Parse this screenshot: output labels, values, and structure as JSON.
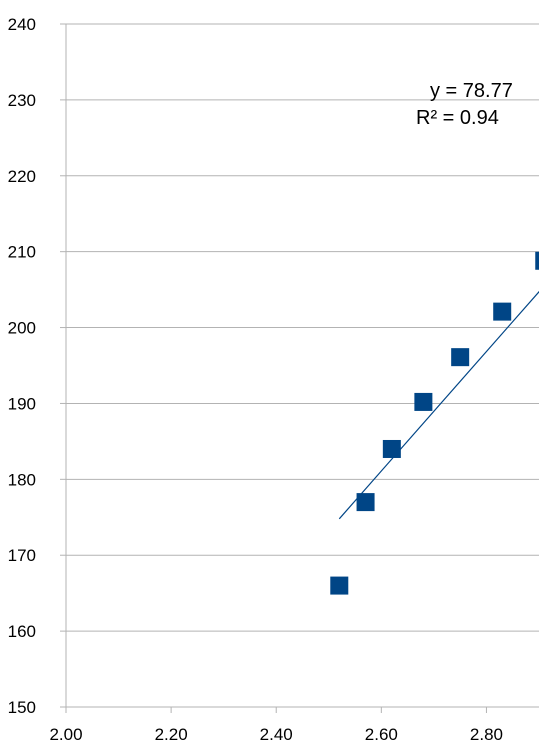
{
  "chart_data": {
    "type": "scatter",
    "title": "",
    "xlabel": "",
    "ylabel": "",
    "xlim": [
      2.0,
      2.9
    ],
    "ylim": [
      150,
      240
    ],
    "x_ticks": [
      "2.00",
      "2.20",
      "2.40",
      "2.60",
      "2.80"
    ],
    "y_ticks": [
      "150",
      "160",
      "170",
      "180",
      "190",
      "200",
      "210",
      "220",
      "230",
      "240"
    ],
    "grid": "horizontal",
    "legend": "none",
    "series": [
      {
        "x": [
          2.52,
          2.57,
          2.62,
          2.68,
          2.75,
          2.83,
          2.91
        ],
        "y": [
          166,
          177,
          184,
          190.2,
          196.1,
          202.1,
          208.8
        ],
        "color": "#004586"
      }
    ],
    "trendline": {
      "x": [
        2.52,
        2.91
      ],
      "y": [
        174.8,
        205.5
      ],
      "color": "#004586"
    },
    "annotations": [
      "y = 78.77",
      "R² = 0.94"
    ],
    "colors": {
      "marker": "#004586",
      "grid": "#b3b3b3",
      "axis": "#b3b3b3"
    }
  }
}
